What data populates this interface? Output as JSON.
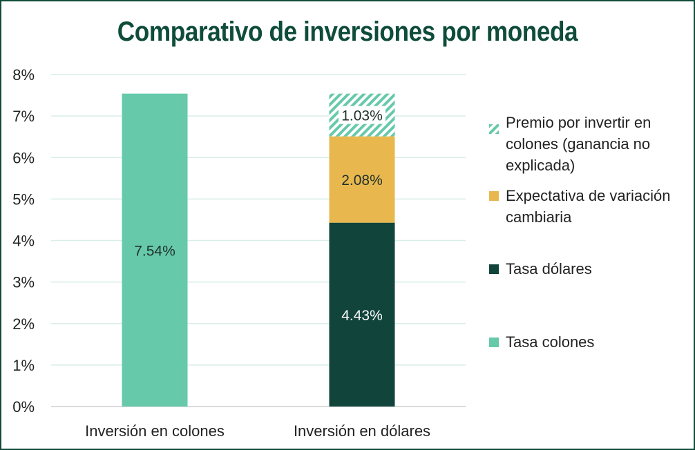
{
  "chart_data": {
    "type": "bar",
    "stacked": true,
    "title": "Comparativo de inversiones por moneda",
    "categories": [
      "Inversión en colones",
      "Inversión en dólares"
    ],
    "series": [
      {
        "name": "Tasa colones",
        "values": [
          7.54,
          0
        ],
        "color": "#66c9aa",
        "labels": [
          "7.54%",
          ""
        ]
      },
      {
        "name": "Tasa dólares",
        "values": [
          0,
          4.43
        ],
        "color": "#11443b",
        "labels": [
          "",
          "4.43%"
        ]
      },
      {
        "name": "Expectativa de variación cambiaria",
        "values": [
          0,
          2.08
        ],
        "color": "#e8b84f",
        "labels": [
          "",
          "2.08%"
        ]
      },
      {
        "name": "Premio por invertir en colones (ganancia no explicada)",
        "values": [
          0,
          1.03
        ],
        "color": "#66c9aa",
        "pattern": "hatch",
        "labels": [
          "",
          "1.03%"
        ]
      }
    ],
    "yticks": [
      "0%",
      "1%",
      "2%",
      "3%",
      "4%",
      "5%",
      "6%",
      "7%",
      "8%"
    ],
    "ylim": [
      0,
      8
    ],
    "legend_order": [
      "Premio por invertir en colones (ganancia no explicada)",
      "Expectativa de variación cambiaria",
      "Tasa dólares",
      "Tasa colones"
    ],
    "legend_position": "right"
  },
  "legend": [
    {
      "label": "Premio por invertir en colones (ganancia no explicada)",
      "color": "#66c9aa",
      "pattern": "hatch"
    },
    {
      "label": "Expectativa de variación cambiaria",
      "color": "#e8b84f"
    },
    {
      "label": "Tasa dólares",
      "color": "#11443b"
    },
    {
      "label": "Tasa colones",
      "color": "#66c9aa"
    }
  ]
}
